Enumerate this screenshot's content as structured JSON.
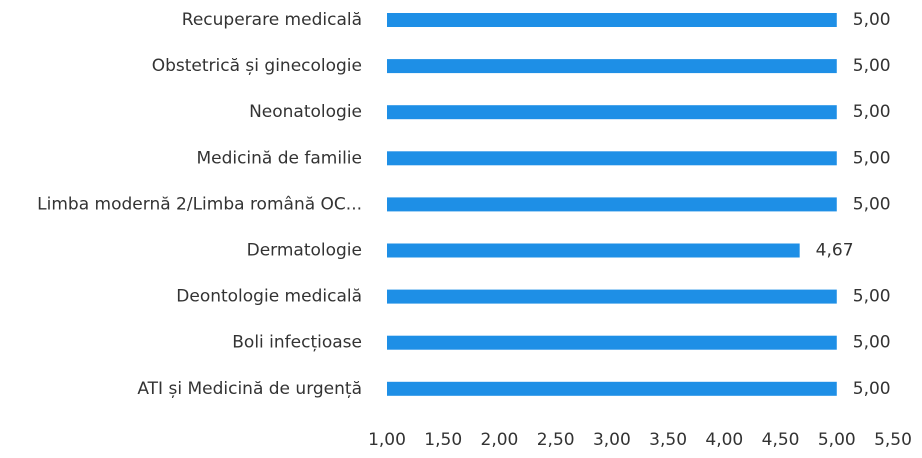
{
  "chart_data": {
    "type": "barh",
    "categories": [
      "Recuperare medicală",
      "Obstetrică și ginecologie",
      "Neonatologie",
      "Medicină de familie",
      "Limba modernă 2/Limba română OC...",
      "Dermatologie",
      "Deontologie medicală",
      "Boli infecțioase",
      "ATI și Medicină de urgență"
    ],
    "values": [
      5.0,
      5.0,
      5.0,
      5.0,
      5.0,
      4.67,
      5.0,
      5.0,
      5.0
    ],
    "value_labels": [
      "5,00",
      "5,00",
      "5,00",
      "5,00",
      "5,00",
      "4,67",
      "5,00",
      "5,00",
      "5,00"
    ],
    "color": "#1e8fe6",
    "xlim": [
      1,
      5.5
    ],
    "xticks": [
      {
        "value": 1,
        "label": "1,00"
      },
      {
        "value": 1.5,
        "label": "1,50"
      },
      {
        "value": 2,
        "label": "2,00"
      },
      {
        "value": 2.5,
        "label": "2,50"
      },
      {
        "value": 3,
        "label": "3,00"
      },
      {
        "value": 3.5,
        "label": "3,50"
      },
      {
        "value": 4,
        "label": "4,00"
      },
      {
        "value": 4.5,
        "label": "4,50"
      },
      {
        "value": 5,
        "label": "5,00"
      },
      {
        "value": 5.5,
        "label": "5,50"
      }
    ],
    "grid": false
  }
}
